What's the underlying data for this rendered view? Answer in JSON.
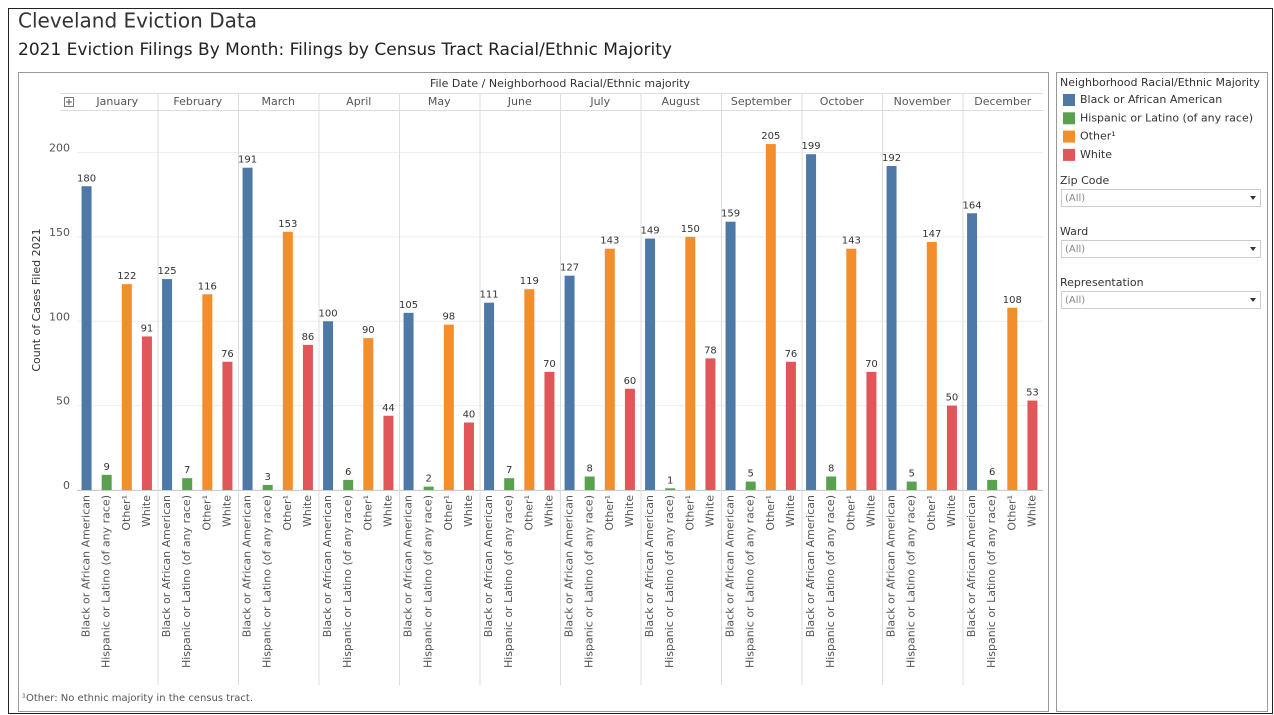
{
  "header": {
    "title": "Cleveland Eviction Data"
  },
  "chart_data": {
    "type": "bar",
    "title": "2021 Eviction Filings By Month: Filings by Census Tract Racial/Ethnic Majority",
    "x_label": "File Date / Neighborhood Racial/Ethnic majority",
    "y_label": "Count of Cases Filed 2021",
    "categories": [
      "January",
      "February",
      "March",
      "April",
      "May",
      "June",
      "July",
      "August",
      "September",
      "October",
      "November",
      "December"
    ],
    "series": [
      {
        "name": "Black or African American",
        "color": "#4e79a7",
        "values": [
          180,
          125,
          191,
          100,
          105,
          111,
          127,
          149,
          159,
          199,
          192,
          164
        ]
      },
      {
        "name": "Hispanic or Latino (of any race)",
        "color": "#59a14f",
        "values": [
          9,
          7,
          3,
          6,
          2,
          7,
          8,
          1,
          5,
          8,
          5,
          6
        ]
      },
      {
        "name": "Other¹",
        "color": "#f28e2b",
        "values": [
          122,
          116,
          153,
          90,
          98,
          119,
          143,
          150,
          205,
          143,
          147,
          108
        ]
      },
      {
        "name": "White",
        "color": "#e15759",
        "values": [
          91,
          76,
          86,
          44,
          40,
          70,
          60,
          78,
          76,
          70,
          50,
          53
        ]
      }
    ],
    "ylim": [
      0,
      224
    ],
    "yticks": [
      0,
      50,
      100,
      150,
      200
    ],
    "grid": true,
    "legend_title": "Neighborhood Racial/Ethnic Majority",
    "footnote": "¹Other: No ethnic majority in the census tract."
  },
  "filters": [
    {
      "label": "Zip Code",
      "value": "(All)"
    },
    {
      "label": "Ward",
      "value": "(All)"
    },
    {
      "label": "Representation",
      "value": "(All)"
    }
  ]
}
